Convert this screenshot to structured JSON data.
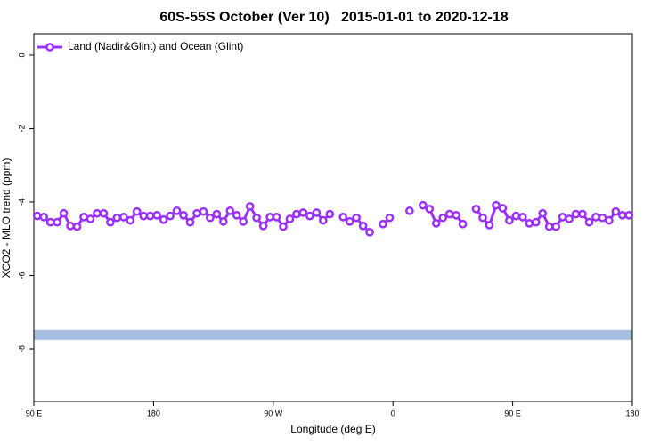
{
  "chart_data": {
    "type": "line",
    "title": "60S-55S October (Ver 10)   2015-01-01 to 2020-12-18",
    "x_label": "Longitude (deg E)",
    "y_label": "XCO2 - MLO trend (ppm)",
    "xlim": [
      90,
      540
    ],
    "xticks": [
      {
        "value": 90,
        "label": "90 E"
      },
      180,
      {
        "value": 270,
        "label": "90 W"
      },
      {
        "value": 360,
        "label": "0"
      },
      {
        "value": 450,
        "label": "90 E"
      },
      {
        "value": 540,
        "label": "180"
      }
    ],
    "ylim": [
      -9.43,
      0.58
    ],
    "yticks": [
      0,
      -2,
      -4,
      -6,
      -8
    ],
    "legend": "top-left",
    "band": {
      "value": -7.62,
      "color": "#a7bddf"
    },
    "x": [
      92.5,
      97.5,
      102.5,
      107.5,
      112.5,
      117.5,
      122.5,
      127.5,
      132.5,
      137.5,
      142.5,
      147.5,
      152.5,
      157.5,
      162.5,
      167.5,
      172.5,
      177.5,
      182.5,
      187.5,
      192.5,
      197.5,
      202.5,
      207.5,
      212.5,
      217.5,
      222.5,
      227.5,
      232.5,
      237.5,
      242.5,
      247.5,
      252.5,
      257.5,
      262.5,
      267.5,
      272.5,
      277.5,
      282.5,
      287.5,
      292.5,
      297.5,
      302.5,
      307.5,
      312.5,
      317.5,
      322.5,
      327.5,
      332.5,
      337.5,
      342.5,
      347.5,
      352.5,
      357.5,
      362.5,
      367.5,
      372.5,
      377.5,
      382.5,
      387.5,
      392.5,
      397.5,
      402.5,
      407.5,
      412.5,
      417.5,
      422.5,
      427.5,
      432.5,
      437.5,
      442.5,
      447.5,
      452.5,
      457.5,
      462.5,
      467.5,
      472.5,
      477.5,
      482.5,
      487.5,
      492.5,
      497.5,
      502.5,
      507.5,
      512.5,
      517.5,
      522.5,
      527.5,
      532.5,
      537.5
    ],
    "series": [
      {
        "name": "Land (Nadir&Glint) and Ocean (Glint)",
        "color": "#9b30ff",
        "values": [
          -4.38,
          -4.41,
          -4.55,
          -4.55,
          -4.31,
          -4.65,
          -4.67,
          -4.41,
          -4.46,
          -4.31,
          -4.31,
          -4.55,
          -4.43,
          -4.41,
          -4.5,
          -4.26,
          -4.38,
          -4.38,
          -4.36,
          -4.48,
          -4.38,
          -4.24,
          -4.36,
          -4.55,
          -4.31,
          -4.26,
          -4.43,
          -4.33,
          -4.53,
          -4.24,
          -4.36,
          -4.53,
          -4.12,
          -4.43,
          -4.65,
          -4.41,
          -4.41,
          -4.67,
          -4.46,
          -4.33,
          -4.29,
          -4.38,
          -4.29,
          -4.5,
          -4.33,
          null,
          -4.41,
          -4.53,
          -4.43,
          -4.65,
          -4.82,
          null,
          -4.6,
          -4.43,
          null,
          null,
          -4.24,
          null,
          -4.09,
          -4.19,
          -4.58,
          -4.43,
          -4.33,
          -4.36,
          -4.6,
          null,
          -4.19,
          -4.43,
          -4.63,
          -4.09,
          -4.17,
          -4.5,
          -4.38,
          -4.41,
          -4.58,
          -4.55,
          -4.31,
          -4.67,
          -4.67,
          -4.41,
          -4.46,
          -4.33,
          -4.33,
          -4.55,
          -4.41,
          -4.43,
          -4.5,
          -4.26,
          -4.36,
          -4.36
        ]
      }
    ]
  }
}
